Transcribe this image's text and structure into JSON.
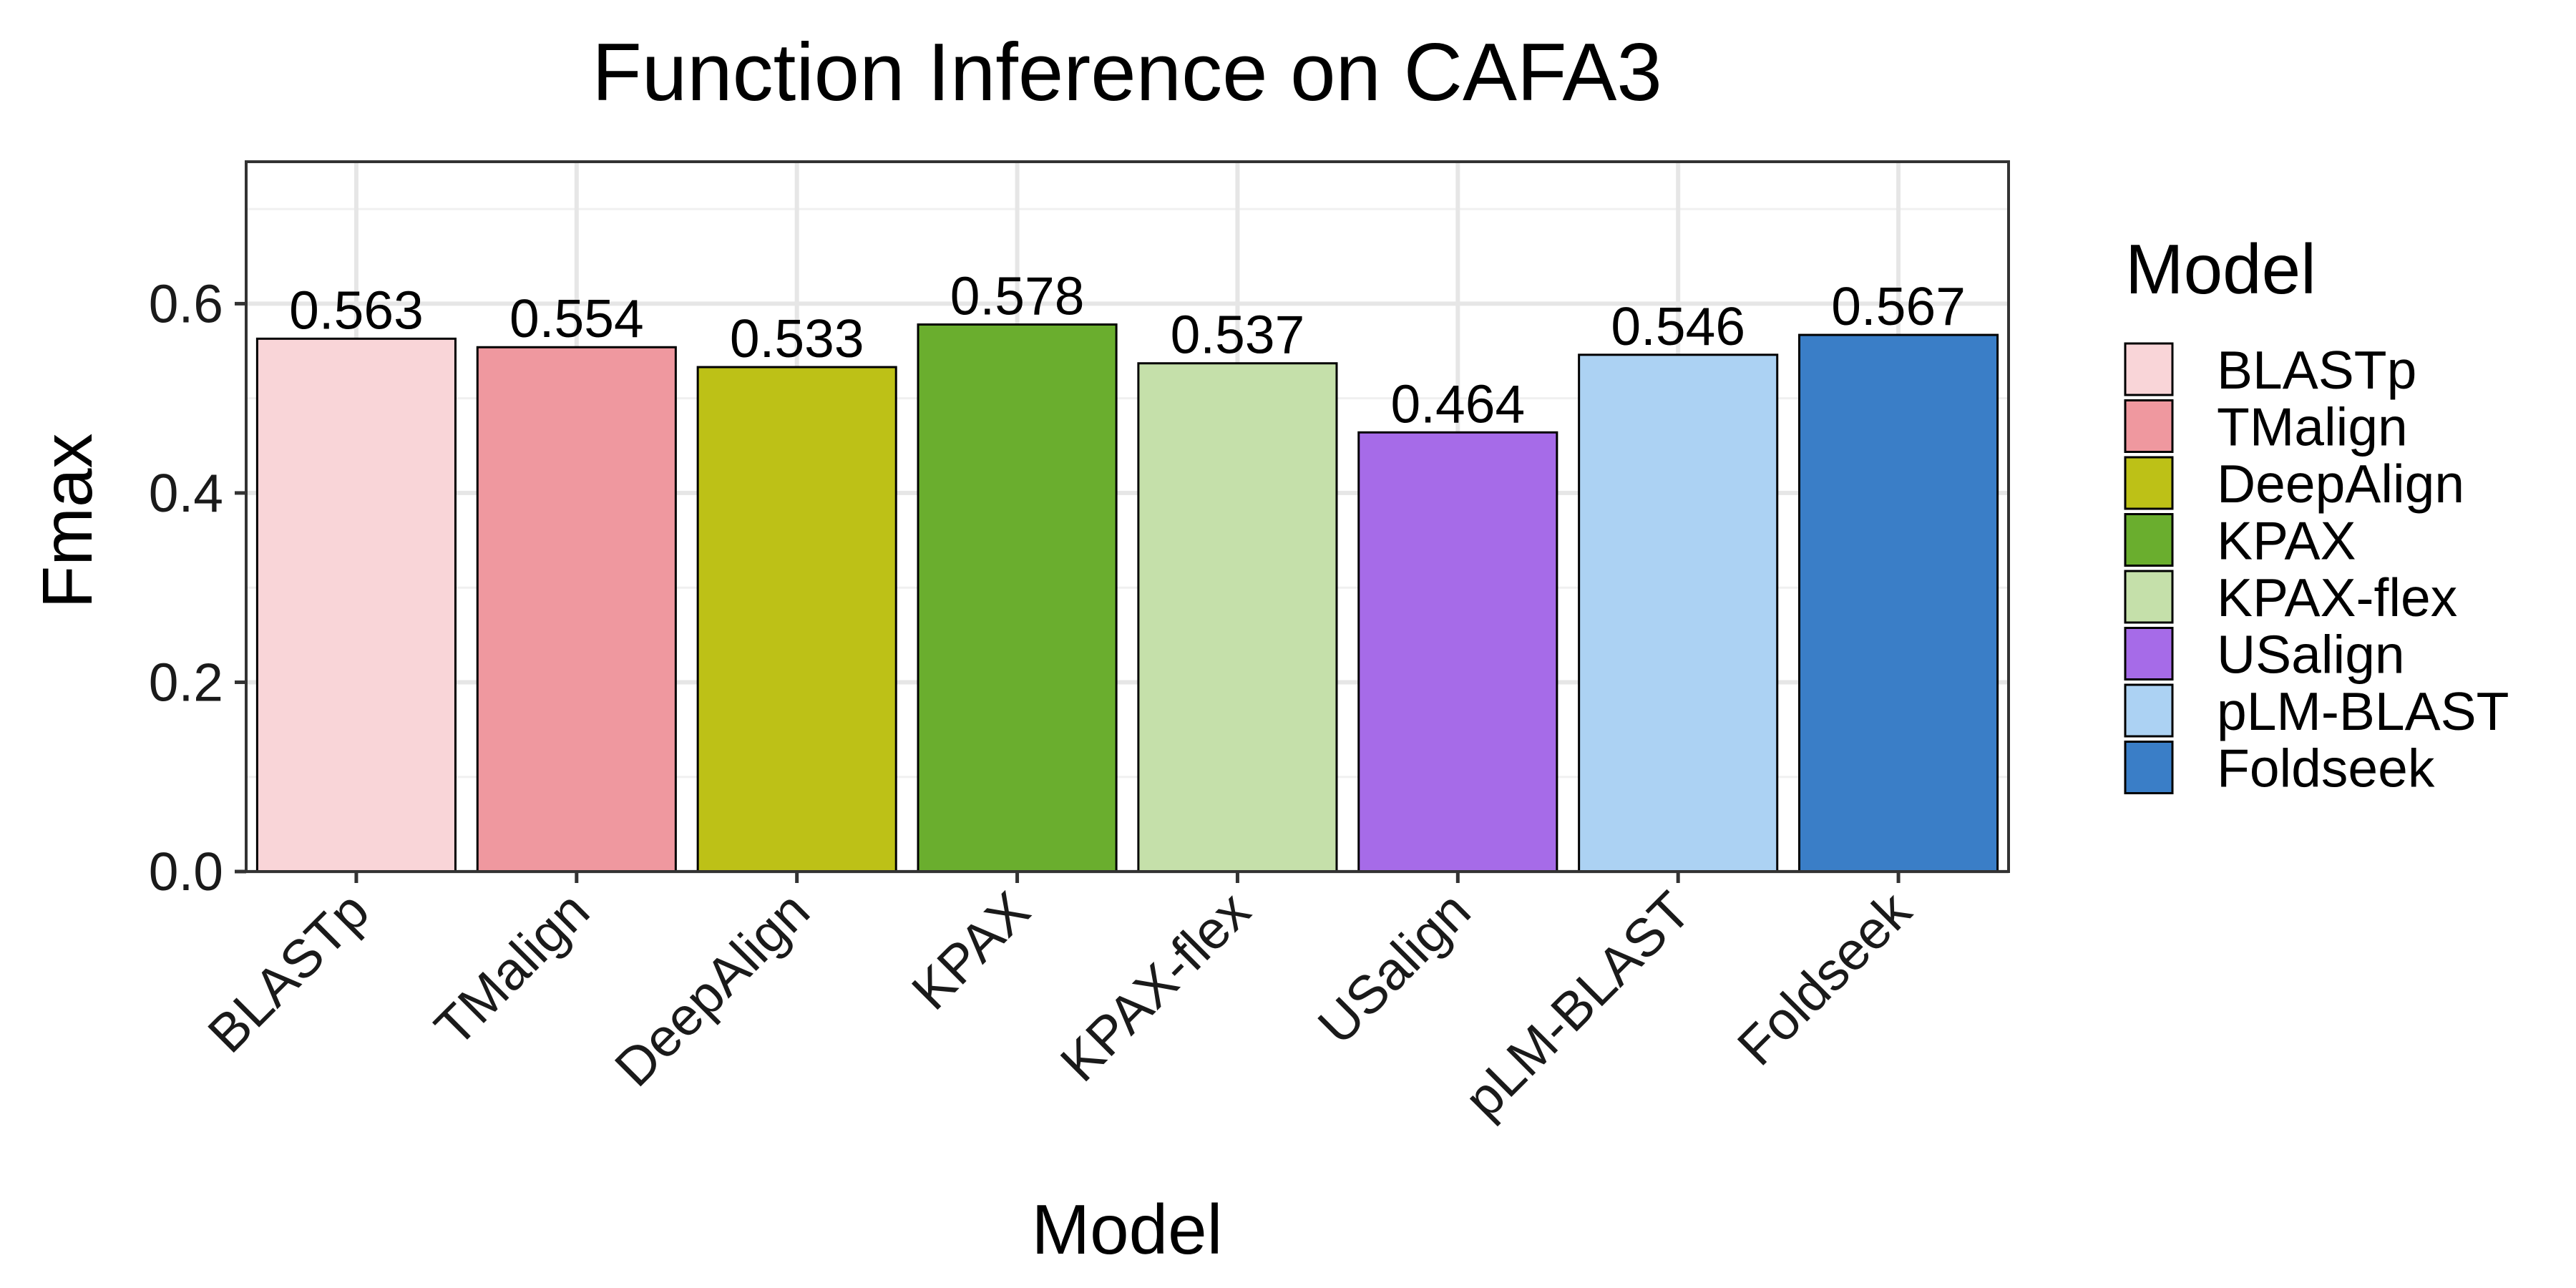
{
  "chart_data": {
    "type": "bar",
    "title": "Function Inference on CAFA3",
    "xlabel": "Model",
    "ylabel": "Fmax",
    "categories": [
      "BLASTp",
      "TMalign",
      "DeepAlign",
      "KPAX",
      "KPAX-flex",
      "USalign",
      "pLM-BLAST",
      "Foldseek"
    ],
    "values": [
      0.563,
      0.554,
      0.533,
      0.578,
      0.537,
      0.464,
      0.546,
      0.567
    ],
    "value_labels": [
      "0.563",
      "0.554",
      "0.533",
      "0.578",
      "0.537",
      "0.464",
      "0.546",
      "0.567"
    ],
    "colors": [
      "#f9d5d8",
      "#ef989f",
      "#bdc117",
      "#6aae2e",
      "#c5e0aa",
      "#a66be8",
      "#acd2f3",
      "#3a7ec7"
    ],
    "ylim": [
      0,
      0.75
    ],
    "yticks": [
      0.0,
      0.2,
      0.4,
      0.6
    ],
    "ytick_labels": [
      "0.0",
      "0.2",
      "0.4",
      "0.6"
    ],
    "grid": true,
    "legend": {
      "title": "Model",
      "placement": "right",
      "entries": [
        "BLASTp",
        "TMalign",
        "DeepAlign",
        "KPAX",
        "KPAX-flex",
        "USalign",
        "pLM-BLAST",
        "Foldseek"
      ]
    }
  }
}
